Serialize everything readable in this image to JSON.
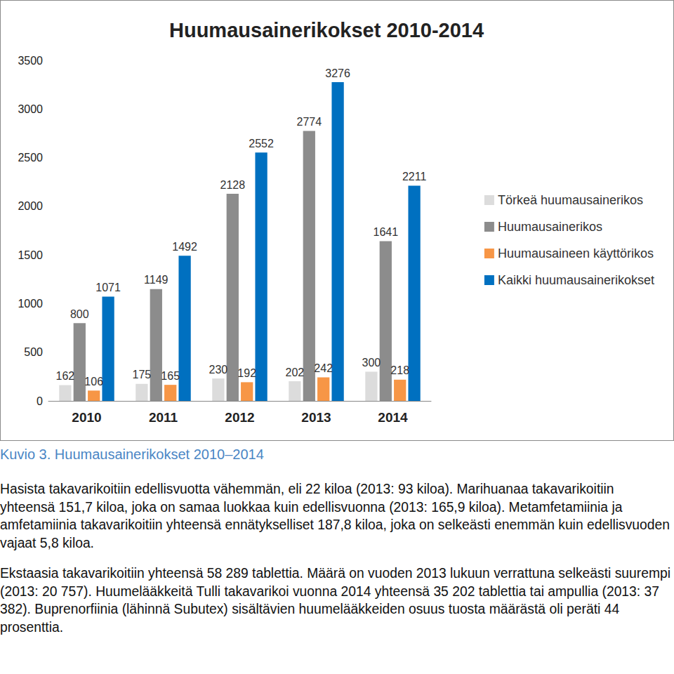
{
  "chart_data": {
    "type": "bar",
    "title": "Huumausainerikokset 2010-2014",
    "categories": [
      "2010",
      "2011",
      "2012",
      "2013",
      "2014"
    ],
    "series": [
      {
        "name": "Törkeä huumausainerikos",
        "color": "#dcdcdc",
        "values": [
          162,
          175,
          230,
          202,
          300
        ]
      },
      {
        "name": "Huumausainerikos",
        "color": "#8c8c8c",
        "values": [
          800,
          1149,
          2128,
          2774,
          1641
        ]
      },
      {
        "name": "Huumausaineen käyttörikos",
        "color": "#f79646",
        "values": [
          106,
          165,
          192,
          242,
          218
        ]
      },
      {
        "name": "Kaikki huumausainerikokset",
        "color": "#0070c0",
        "values": [
          1071,
          1492,
          2552,
          3276,
          2211
        ]
      }
    ],
    "ylim": [
      0,
      3500
    ],
    "yticks": [
      0,
      500,
      1000,
      1500,
      2000,
      2500,
      3000,
      3500
    ],
    "grid": false,
    "legend": "right",
    "data_labels": true
  },
  "caption": "Kuvio 3. Huumausainerikokset 2010–2014",
  "paragraphs": [
    "Hasista takavarikoitiin edellisvuotta vähemmän, eli 22 kiloa (2013: 93 kiloa). Marihuanaa takavarikoitiin yhteensä 151,7 kiloa, joka on samaa luokkaa kuin edellisvuonna (2013: 165,9 kiloa). Metamfetamiinia ja amfetamiinia takavarikoitiin yhteensä ennätykselliset 187,8 kiloa, joka on selkeästi enemmän kuin edellisvuoden vajaat 5,8 kiloa.",
    "Ekstaasia takavarikoitiin yhteensä 58 289 tablettia. Määrä on vuoden 2013 lukuun verrattuna selkeästi suurempi (2013: 20 757). Huumelääkkeitä Tulli takavarikoi vuonna 2014 yhteensä 35 202 tablettia tai ampullia (2013: 37 382). Buprenorfiinia (lähinnä Subutex) sisältävien huumelääkkeiden osuus tuosta määrästä oli peräti 44 prosenttia."
  ]
}
